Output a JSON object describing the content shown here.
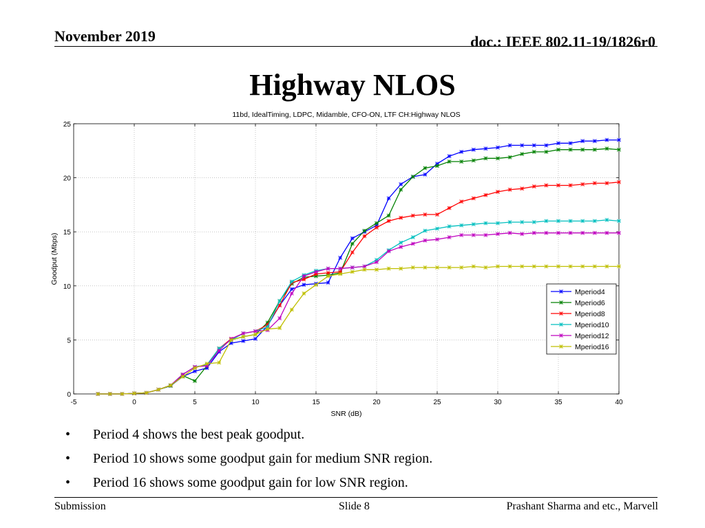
{
  "header": {
    "date": "November 2019",
    "doc": "doc.: IEEE 802.11-19/1826r0"
  },
  "slide_title": "Highway NLOS",
  "bullets": [
    "Period 4 shows the best peak goodput.",
    "Period 10 shows some goodput gain for medium SNR region.",
    "Period 16 shows some goodput gain for low SNR region."
  ],
  "footer": {
    "left": "Submission",
    "center": "Slide 8",
    "right": "Prashant Sharma and etc., Marvell"
  },
  "chart_data": {
    "type": "line",
    "title": "11bd, IdealTiming, LDPC, Midamble, CFO-ON, LTF CH:Highway NLOS",
    "xlabel": "SNR (dB)",
    "ylabel": "Goodput (Mbps)",
    "xlim": [
      -5,
      40
    ],
    "ylim": [
      0,
      25
    ],
    "xticks": [
      -5,
      0,
      5,
      10,
      15,
      20,
      25,
      30,
      35,
      40
    ],
    "yticks": [
      0,
      5,
      10,
      15,
      20,
      25
    ],
    "grid": true,
    "legend_position": "right",
    "x": [
      -3,
      -2,
      -1,
      0,
      1,
      2,
      3,
      4,
      5,
      6,
      7,
      8,
      9,
      10,
      11,
      12,
      13,
      14,
      15,
      16,
      17,
      18,
      19,
      20,
      21,
      22,
      23,
      24,
      25,
      26,
      27,
      28,
      29,
      30,
      31,
      32,
      33,
      34,
      35,
      36,
      37,
      38,
      39,
      40
    ],
    "series": [
      {
        "name": "Mperiod4",
        "color": "#0000ff",
        "values": [
          0,
          0,
          0,
          0.05,
          0.1,
          0.4,
          0.75,
          1.6,
          2.1,
          2.4,
          3.9,
          4.7,
          4.9,
          5.1,
          6.3,
          8.2,
          9.7,
          10.1,
          10.2,
          10.3,
          12.6,
          14.4,
          15.0,
          15.6,
          18.1,
          19.4,
          20.1,
          20.3,
          21.3,
          22.0,
          22.4,
          22.6,
          22.7,
          22.8,
          23.0,
          23.0,
          23.0,
          23.0,
          23.2,
          23.2,
          23.4,
          23.4,
          23.5,
          23.5
        ]
      },
      {
        "name": "Mperiod6",
        "color": "#008000",
        "values": [
          0,
          0,
          0,
          0.05,
          0.1,
          0.4,
          0.75,
          1.7,
          1.2,
          2.6,
          4.2,
          5.0,
          5.3,
          5.5,
          6.6,
          8.6,
          10.2,
          10.8,
          10.9,
          11.0,
          11.2,
          13.9,
          15.1,
          15.8,
          16.5,
          18.9,
          20.1,
          20.9,
          21.1,
          21.5,
          21.5,
          21.6,
          21.8,
          21.8,
          21.9,
          22.2,
          22.4,
          22.4,
          22.6,
          22.6,
          22.6,
          22.6,
          22.7,
          22.6
        ]
      },
      {
        "name": "Mperiod8",
        "color": "#ff0000",
        "values": [
          0,
          0,
          0,
          0.05,
          0.1,
          0.4,
          0.8,
          1.8,
          2.5,
          2.7,
          4.2,
          5.1,
          5.6,
          5.8,
          6.4,
          8.2,
          10.3,
          10.6,
          11.1,
          11.2,
          11.3,
          13.1,
          14.6,
          15.4,
          16.0,
          16.3,
          16.5,
          16.6,
          16.6,
          17.2,
          17.8,
          18.1,
          18.4,
          18.7,
          18.9,
          19.0,
          19.2,
          19.3,
          19.3,
          19.3,
          19.4,
          19.5,
          19.5,
          19.6
        ]
      },
      {
        "name": "Mperiod10",
        "color": "#00bfbf",
        "values": [
          0,
          0,
          0,
          0.05,
          0.1,
          0.4,
          0.8,
          1.8,
          2.5,
          2.7,
          4.2,
          5.0,
          5.6,
          5.8,
          6.2,
          8.6,
          10.4,
          11.0,
          11.4,
          11.6,
          11.6,
          11.7,
          11.8,
          12.4,
          13.3,
          14.0,
          14.5,
          15.1,
          15.3,
          15.5,
          15.6,
          15.7,
          15.8,
          15.8,
          15.9,
          15.9,
          15.9,
          16.0,
          16.0,
          16.0,
          16.0,
          16.0,
          16.1,
          16.0
        ]
      },
      {
        "name": "Mperiod12",
        "color": "#bf00bf",
        "values": [
          0,
          0,
          0,
          0.05,
          0.1,
          0.4,
          0.8,
          1.8,
          2.5,
          2.6,
          4.0,
          5.1,
          5.6,
          5.8,
          5.9,
          7.0,
          9.3,
          10.9,
          11.3,
          11.6,
          11.6,
          11.7,
          11.8,
          12.2,
          13.2,
          13.6,
          13.9,
          14.2,
          14.3,
          14.5,
          14.7,
          14.7,
          14.7,
          14.8,
          14.9,
          14.8,
          14.9,
          14.9,
          14.9,
          14.9,
          14.9,
          14.9,
          14.9,
          14.9
        ]
      },
      {
        "name": "Mperiod16",
        "color": "#bfbf00",
        "values": [
          0,
          0,
          0,
          0.05,
          0.1,
          0.4,
          0.8,
          1.6,
          2.4,
          2.8,
          2.9,
          5.0,
          5.3,
          5.5,
          6.0,
          6.1,
          7.8,
          9.3,
          10.1,
          10.9,
          11.1,
          11.3,
          11.5,
          11.5,
          11.6,
          11.6,
          11.7,
          11.7,
          11.7,
          11.7,
          11.7,
          11.8,
          11.7,
          11.8,
          11.8,
          11.8,
          11.8,
          11.8,
          11.8,
          11.8,
          11.8,
          11.8,
          11.8,
          11.8
        ]
      }
    ]
  }
}
